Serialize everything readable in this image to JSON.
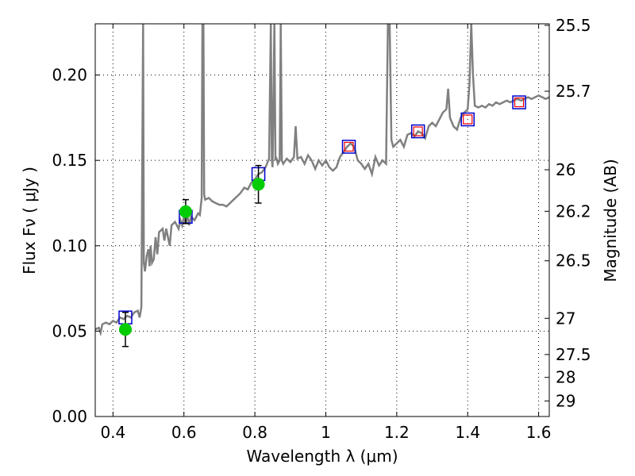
{
  "chart_data": {
    "type": "line",
    "title": "",
    "xlabel": "Wavelength  λ (μm)",
    "ylabel": "Flux  Fν  ( μJy )",
    "y2label": "Magnitude (AB)",
    "xlim": [
      0.35,
      1.63
    ],
    "ylim": [
      0.0,
      0.23
    ],
    "grid": true,
    "x_ticks": [
      0.4,
      0.6,
      0.8,
      1.0,
      1.2,
      1.4,
      1.6
    ],
    "x_tick_labels": [
      "0.4",
      "0.6",
      "0.8",
      "1",
      "1.2",
      "1.4",
      "1.6"
    ],
    "y_ticks": [
      0.0,
      0.05,
      0.1,
      0.15,
      0.2
    ],
    "y_tick_labels": [
      "0.00",
      "0.05",
      "0.10",
      "0.15",
      "0.20"
    ],
    "y2_ticks": [
      {
        "label": "25.5",
        "flux": 0.2291
      },
      {
        "label": "25.7",
        "flux": 0.1905
      },
      {
        "label": "26",
        "flux": 0.1445
      },
      {
        "label": "26.2",
        "flux": 0.1202
      },
      {
        "label": "26.5",
        "flux": 0.0912
      },
      {
        "label": "27",
        "flux": 0.0575
      },
      {
        "label": "27.5",
        "flux": 0.0363
      },
      {
        "label": "28",
        "flux": 0.0229
      },
      {
        "label": "29",
        "flux": 0.0091
      }
    ],
    "series": [
      {
        "kind": "line",
        "color": "#808080",
        "points": [
          [
            0.35,
            0.051
          ],
          [
            0.36,
            0.052
          ],
          [
            0.365,
            0.049
          ],
          [
            0.37,
            0.054
          ],
          [
            0.38,
            0.055
          ],
          [
            0.39,
            0.054
          ],
          [
            0.4,
            0.056
          ],
          [
            0.41,
            0.055
          ],
          [
            0.42,
            0.058
          ],
          [
            0.43,
            0.057
          ],
          [
            0.44,
            0.059
          ],
          [
            0.45,
            0.058
          ],
          [
            0.46,
            0.061
          ],
          [
            0.47,
            0.062
          ],
          [
            0.475,
            0.058
          ],
          [
            0.48,
            0.064
          ],
          [
            0.485,
            0.23
          ],
          [
            0.487,
            0.09
          ],
          [
            0.49,
            0.085
          ],
          [
            0.495,
            0.094
          ],
          [
            0.5,
            0.098
          ],
          [
            0.503,
            0.088
          ],
          [
            0.506,
            0.1
          ],
          [
            0.51,
            0.09
          ],
          [
            0.515,
            0.092
          ],
          [
            0.52,
            0.105
          ],
          [
            0.525,
            0.095
          ],
          [
            0.53,
            0.108
          ],
          [
            0.54,
            0.11
          ],
          [
            0.545,
            0.103
          ],
          [
            0.55,
            0.11
          ],
          [
            0.56,
            0.1
          ],
          [
            0.565,
            0.112
          ],
          [
            0.575,
            0.114
          ],
          [
            0.585,
            0.11
          ],
          [
            0.59,
            0.115
          ],
          [
            0.595,
            0.112
          ],
          [
            0.6,
            0.117
          ],
          [
            0.605,
            0.113
          ],
          [
            0.61,
            0.118
          ],
          [
            0.615,
            0.112
          ],
          [
            0.62,
            0.117
          ],
          [
            0.63,
            0.115
          ],
          [
            0.64,
            0.119
          ],
          [
            0.645,
            0.118
          ],
          [
            0.65,
            0.128
          ],
          [
            0.652,
            0.23
          ],
          [
            0.655,
            0.23
          ],
          [
            0.657,
            0.13
          ],
          [
            0.66,
            0.127
          ],
          [
            0.67,
            0.128
          ],
          [
            0.68,
            0.126
          ],
          [
            0.69,
            0.125
          ],
          [
            0.7,
            0.124
          ],
          [
            0.71,
            0.124
          ],
          [
            0.72,
            0.123
          ],
          [
            0.73,
            0.125
          ],
          [
            0.74,
            0.127
          ],
          [
            0.75,
            0.129
          ],
          [
            0.76,
            0.131
          ],
          [
            0.77,
            0.134
          ],
          [
            0.78,
            0.133
          ],
          [
            0.79,
            0.137
          ],
          [
            0.8,
            0.139
          ],
          [
            0.81,
            0.142
          ],
          [
            0.82,
            0.143
          ],
          [
            0.83,
            0.146
          ],
          [
            0.84,
            0.151
          ],
          [
            0.845,
            0.23
          ],
          [
            0.848,
            0.15
          ],
          [
            0.85,
            0.146
          ],
          [
            0.855,
            0.23
          ],
          [
            0.858,
            0.15
          ],
          [
            0.86,
            0.152
          ],
          [
            0.865,
            0.148
          ],
          [
            0.87,
            0.15
          ],
          [
            0.873,
            0.23
          ],
          [
            0.876,
            0.15
          ],
          [
            0.88,
            0.148
          ],
          [
            0.89,
            0.151
          ],
          [
            0.9,
            0.149
          ],
          [
            0.91,
            0.152
          ],
          [
            0.915,
            0.17
          ],
          [
            0.92,
            0.151
          ],
          [
            0.93,
            0.152
          ],
          [
            0.94,
            0.148
          ],
          [
            0.95,
            0.153
          ],
          [
            0.96,
            0.15
          ],
          [
            0.97,
            0.145
          ],
          [
            0.98,
            0.15
          ],
          [
            0.99,
            0.147
          ],
          [
            1.0,
            0.15
          ],
          [
            1.01,
            0.146
          ],
          [
            1.02,
            0.144
          ],
          [
            1.03,
            0.146
          ],
          [
            1.04,
            0.152
          ],
          [
            1.05,
            0.155
          ],
          [
            1.06,
            0.158
          ],
          [
            1.07,
            0.16
          ],
          [
            1.08,
            0.158
          ],
          [
            1.09,
            0.15
          ],
          [
            1.1,
            0.148
          ],
          [
            1.11,
            0.145
          ],
          [
            1.12,
            0.148
          ],
          [
            1.13,
            0.142
          ],
          [
            1.14,
            0.152
          ],
          [
            1.15,
            0.147
          ],
          [
            1.16,
            0.15
          ],
          [
            1.17,
            0.148
          ],
          [
            1.175,
            0.23
          ],
          [
            1.18,
            0.23
          ],
          [
            1.185,
            0.162
          ],
          [
            1.19,
            0.158
          ],
          [
            1.2,
            0.16
          ],
          [
            1.21,
            0.162
          ],
          [
            1.22,
            0.158
          ],
          [
            1.23,
            0.165
          ],
          [
            1.24,
            0.166
          ],
          [
            1.25,
            0.164
          ],
          [
            1.26,
            0.167
          ],
          [
            1.27,
            0.166
          ],
          [
            1.28,
            0.163
          ],
          [
            1.29,
            0.17
          ],
          [
            1.3,
            0.172
          ],
          [
            1.31,
            0.17
          ],
          [
            1.32,
            0.174
          ],
          [
            1.33,
            0.178
          ],
          [
            1.34,
            0.18
          ],
          [
            1.345,
            0.192
          ],
          [
            1.35,
            0.175
          ],
          [
            1.36,
            0.17
          ],
          [
            1.37,
            0.168
          ],
          [
            1.38,
            0.175
          ],
          [
            1.39,
            0.178
          ],
          [
            1.4,
            0.18
          ],
          [
            1.405,
            0.195
          ],
          [
            1.41,
            0.23
          ],
          [
            1.415,
            0.2
          ],
          [
            1.42,
            0.182
          ],
          [
            1.43,
            0.181
          ],
          [
            1.44,
            0.182
          ],
          [
            1.45,
            0.181
          ],
          [
            1.46,
            0.183
          ],
          [
            1.47,
            0.182
          ],
          [
            1.48,
            0.184
          ],
          [
            1.49,
            0.183
          ],
          [
            1.5,
            0.184
          ],
          [
            1.51,
            0.185
          ],
          [
            1.52,
            0.184
          ],
          [
            1.53,
            0.185
          ],
          [
            1.54,
            0.186
          ],
          [
            1.55,
            0.185
          ],
          [
            1.56,
            0.186
          ],
          [
            1.57,
            0.187
          ],
          [
            1.58,
            0.186
          ],
          [
            1.59,
            0.187
          ],
          [
            1.6,
            0.188
          ],
          [
            1.61,
            0.187
          ],
          [
            1.62,
            0.186
          ],
          [
            1.63,
            0.187
          ]
        ]
      },
      {
        "kind": "model_boxes",
        "color": "#0000cc",
        "points": [
          [
            0.435,
            0.058
          ],
          [
            0.605,
            0.117
          ],
          [
            0.81,
            0.142
          ],
          [
            1.065,
            0.158
          ],
          [
            1.26,
            0.167
          ],
          [
            1.4,
            0.174
          ],
          [
            1.545,
            0.184
          ]
        ]
      },
      {
        "kind": "model_boxes_inner",
        "color": "#ff0000",
        "points": [
          [
            1.065,
            0.158
          ],
          [
            1.26,
            0.167
          ],
          [
            1.4,
            0.174
          ],
          [
            1.545,
            0.184
          ]
        ]
      },
      {
        "kind": "observed_points",
        "color": "#00cc00",
        "points": [
          {
            "x": 0.435,
            "y": 0.051,
            "yerr": 0.01
          },
          {
            "x": 0.605,
            "y": 0.12,
            "yerr": 0.007
          },
          {
            "x": 0.81,
            "y": 0.136,
            "yerr": 0.011
          }
        ]
      }
    ]
  }
}
